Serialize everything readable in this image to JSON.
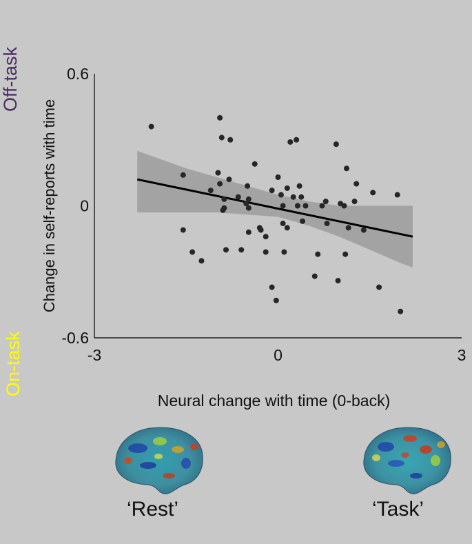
{
  "labels": {
    "off_task": "Off-task",
    "on_task": "On-task",
    "rest": "‘Rest’",
    "task": "‘Task’"
  },
  "colors": {
    "background": "#c8c8c8",
    "off_task": "#4b2d61",
    "on_task": "#ffff00",
    "points": "#262626",
    "fit_line": "#000000",
    "ci_band": "#a3a3a3"
  },
  "chart_data": {
    "type": "scatter",
    "title": "",
    "xlabel": "Neural change with time (0-back)",
    "ylabel": "Change in self-reports with time",
    "xlim": [
      -3,
      3
    ],
    "ylim": [
      -0.6,
      0.6
    ],
    "xticks": [
      "-3",
      "0",
      "3"
    ],
    "yticks": [
      "0.6",
      "0",
      "-0.6"
    ],
    "grid": false,
    "legend": "none",
    "fit_line": {
      "x": [
        -2.3,
        2.2
      ],
      "y": [
        0.12,
        -0.14
      ]
    },
    "confidence_band": {
      "x": [
        -2.3,
        -2.0,
        -1.5,
        -1.0,
        -0.5,
        0.0,
        0.5,
        1.0,
        1.5,
        2.0,
        2.2
      ],
      "upper": [
        0.25,
        0.22,
        0.17,
        0.13,
        0.09,
        0.05,
        0.02,
        0.0,
        0.0,
        0.0,
        0.0
      ],
      "lower": [
        -0.03,
        -0.03,
        -0.03,
        -0.03,
        -0.04,
        -0.05,
        -0.09,
        -0.14,
        -0.2,
        -0.26,
        -0.28
      ]
    },
    "points": [
      {
        "x": -2.07,
        "y": 0.36
      },
      {
        "x": -1.55,
        "y": 0.14
      },
      {
        "x": -1.55,
        "y": -0.11
      },
      {
        "x": -1.4,
        "y": -0.21
      },
      {
        "x": -1.25,
        "y": -0.25
      },
      {
        "x": -1.1,
        "y": 0.07
      },
      {
        "x": -0.98,
        "y": 0.15
      },
      {
        "x": -0.95,
        "y": 0.4
      },
      {
        "x": -0.95,
        "y": 0.1
      },
      {
        "x": -0.92,
        "y": 0.31
      },
      {
        "x": -0.9,
        "y": -0.02
      },
      {
        "x": -0.88,
        "y": 0.03
      },
      {
        "x": -0.88,
        "y": -0.01
      },
      {
        "x": -0.85,
        "y": -0.2
      },
      {
        "x": -0.8,
        "y": 0.12
      },
      {
        "x": -0.78,
        "y": 0.3
      },
      {
        "x": -0.65,
        "y": 0.04
      },
      {
        "x": -0.6,
        "y": -0.2
      },
      {
        "x": -0.52,
        "y": 0.01
      },
      {
        "x": -0.5,
        "y": 0.09
      },
      {
        "x": -0.48,
        "y": 0.03
      },
      {
        "x": -0.48,
        "y": -0.01
      },
      {
        "x": -0.48,
        "y": -0.12
      },
      {
        "x": -0.38,
        "y": 0.19
      },
      {
        "x": -0.3,
        "y": -0.1
      },
      {
        "x": -0.28,
        "y": -0.11
      },
      {
        "x": -0.2,
        "y": -0.21
      },
      {
        "x": -0.2,
        "y": -0.14
      },
      {
        "x": -0.1,
        "y": 0.07
      },
      {
        "x": -0.1,
        "y": -0.37
      },
      {
        "x": 0.0,
        "y": 0.13
      },
      {
        "x": -0.03,
        "y": -0.43
      },
      {
        "x": 0.05,
        "y": 0.05
      },
      {
        "x": 0.08,
        "y": 0.0
      },
      {
        "x": 0.08,
        "y": -0.08
      },
      {
        "x": 0.1,
        "y": -0.21
      },
      {
        "x": 0.15,
        "y": 0.08
      },
      {
        "x": 0.15,
        "y": -0.1
      },
      {
        "x": 0.2,
        "y": 0.29
      },
      {
        "x": 0.25,
        "y": 0.04
      },
      {
        "x": 0.3,
        "y": 0.3
      },
      {
        "x": 0.32,
        "y": 0.0
      },
      {
        "x": 0.35,
        "y": 0.09
      },
      {
        "x": 0.38,
        "y": 0.04
      },
      {
        "x": 0.4,
        "y": -0.07
      },
      {
        "x": 0.45,
        "y": 0.0
      },
      {
        "x": 0.6,
        "y": -0.32
      },
      {
        "x": 0.65,
        "y": -0.22
      },
      {
        "x": 0.72,
        "y": 0.0
      },
      {
        "x": 0.78,
        "y": 0.02
      },
      {
        "x": 0.8,
        "y": -0.08
      },
      {
        "x": 0.95,
        "y": 0.28
      },
      {
        "x": 0.98,
        "y": -0.34
      },
      {
        "x": 1.02,
        "y": 0.01
      },
      {
        "x": 1.08,
        "y": 0.0
      },
      {
        "x": 1.1,
        "y": -0.22
      },
      {
        "x": 1.12,
        "y": 0.17
      },
      {
        "x": 1.15,
        "y": -0.1
      },
      {
        "x": 1.25,
        "y": 0.02
      },
      {
        "x": 1.28,
        "y": 0.1
      },
      {
        "x": 1.4,
        "y": -0.11
      },
      {
        "x": 1.55,
        "y": 0.06
      },
      {
        "x": 1.65,
        "y": -0.37
      },
      {
        "x": 1.95,
        "y": 0.05
      },
      {
        "x": 2.0,
        "y": -0.48
      }
    ]
  }
}
